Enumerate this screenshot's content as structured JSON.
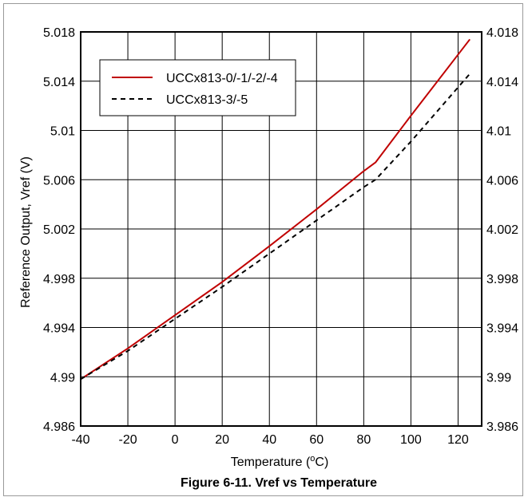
{
  "chart_data": {
    "type": "line",
    "caption": "Figure 6-11. Vref vs Temperature",
    "xlabel": "Temperature (",
    "xlabel_sup": "o",
    "xlabel_unit": "C)",
    "ylabel": "Reference Output, Vref (V)",
    "xlim": [
      -40,
      130
    ],
    "ylim": [
      4.986,
      5.018
    ],
    "ylim_right": [
      3.986,
      4.018
    ],
    "x_ticks": [
      -40,
      -20,
      0,
      20,
      40,
      60,
      80,
      100,
      120
    ],
    "x_tick_labels": [
      "-40",
      "-20",
      "0",
      "20",
      "40",
      "60",
      "80",
      "100",
      "120"
    ],
    "y_ticks": [
      4.986,
      4.99,
      4.994,
      4.998,
      5.002,
      5.006,
      5.01,
      5.014,
      5.018
    ],
    "y_tick_labels": [
      "4.986",
      "4.99",
      "4.994",
      "4.998",
      "5.002",
      "5.006",
      "5.01",
      "5.014",
      "5.018"
    ],
    "y_right_tick_labels": [
      "3.986",
      "3.99",
      "3.994",
      "3.998",
      "4.002",
      "4.006",
      "4.01",
      "4.014",
      "4.018"
    ],
    "grid": true,
    "legend_position": "top-left",
    "series": [
      {
        "name": "UCCx813-0/-1/-2/-4",
        "color": "#c00000",
        "style": "solid",
        "x": [
          -40,
          -20,
          0,
          20,
          40,
          60,
          80,
          85,
          100,
          125
        ],
        "y": [
          4.9898,
          4.9923,
          4.995,
          4.9977,
          5.0006,
          5.0036,
          5.0067,
          5.0074,
          5.0112,
          5.0174
        ]
      },
      {
        "name": "UCCx813-3/-5",
        "color": "#000000",
        "style": "dashed",
        "x": [
          -40,
          -20,
          0,
          20,
          40,
          60,
          80,
          85,
          100,
          125
        ],
        "y": [
          4.9898,
          4.9921,
          4.9947,
          4.9973,
          5.0,
          5.0027,
          5.0054,
          5.006,
          5.0091,
          5.0146
        ]
      }
    ]
  }
}
